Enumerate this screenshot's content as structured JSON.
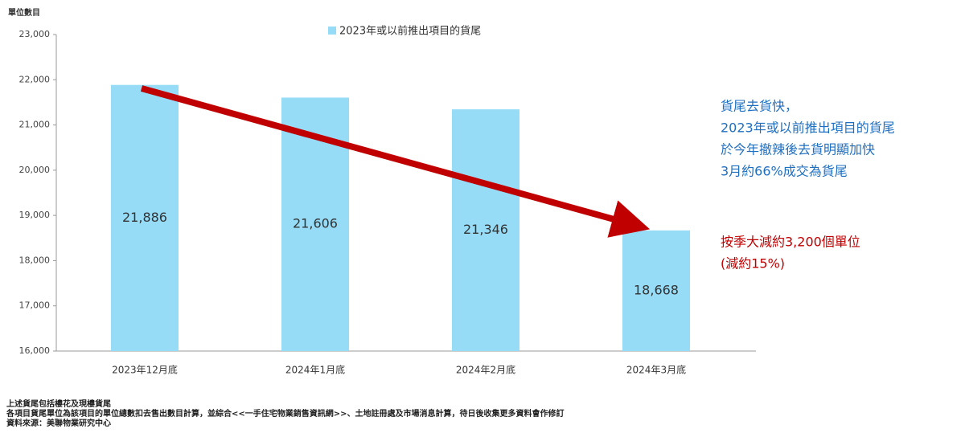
{
  "chart_data": {
    "type": "bar",
    "y_axis_label": "單位數目",
    "categories": [
      "2023年12月底",
      "2024年1月底",
      "2024年2月底",
      "2024年3月底"
    ],
    "series": [
      {
        "name": "2023年或以前推出項目的貨尾",
        "color": "#97dcf7",
        "values": [
          21886,
          21606,
          21346,
          18668
        ],
        "value_labels": [
          "21,886",
          "21,606",
          "21,346",
          "18,668"
        ]
      }
    ],
    "ylim": [
      16000,
      23000
    ],
    "yticks": [
      {
        "value": 16000,
        "label": "16,000"
      },
      {
        "value": 17000,
        "label": "17,000"
      },
      {
        "value": 18000,
        "label": "18,000"
      },
      {
        "value": 19000,
        "label": "19,000"
      },
      {
        "value": 20000,
        "label": "20,000"
      },
      {
        "value": 21000,
        "label": "21,000"
      },
      {
        "value": 22000,
        "label": "22,000"
      },
      {
        "value": 23000,
        "label": "23,000"
      }
    ],
    "grid": false,
    "annotations": [
      {
        "lines": [
          "貨尾去貨快，",
          "2023年或以前推出項目的貨尾",
          "於今年撤辣後去貨明顯加快",
          "3月約66%成交為貨尾"
        ],
        "color": "#1f6fc0"
      },
      {
        "lines": [
          "按季大減約3,200個單位",
          "(減約15%)"
        ],
        "color": "#c00000"
      }
    ],
    "notes": [
      "上述貨尾包括樓花及現樓貨尾",
      "各項目貨尾單位為該項目的單位總數扣去售出數目計算，並綜合<<一手住宅物業銷售資訊網>>、土地註冊處及市場消息計算，待日後收集更多資料會作修訂",
      "資料來源：美聯物業研究中心"
    ]
  }
}
